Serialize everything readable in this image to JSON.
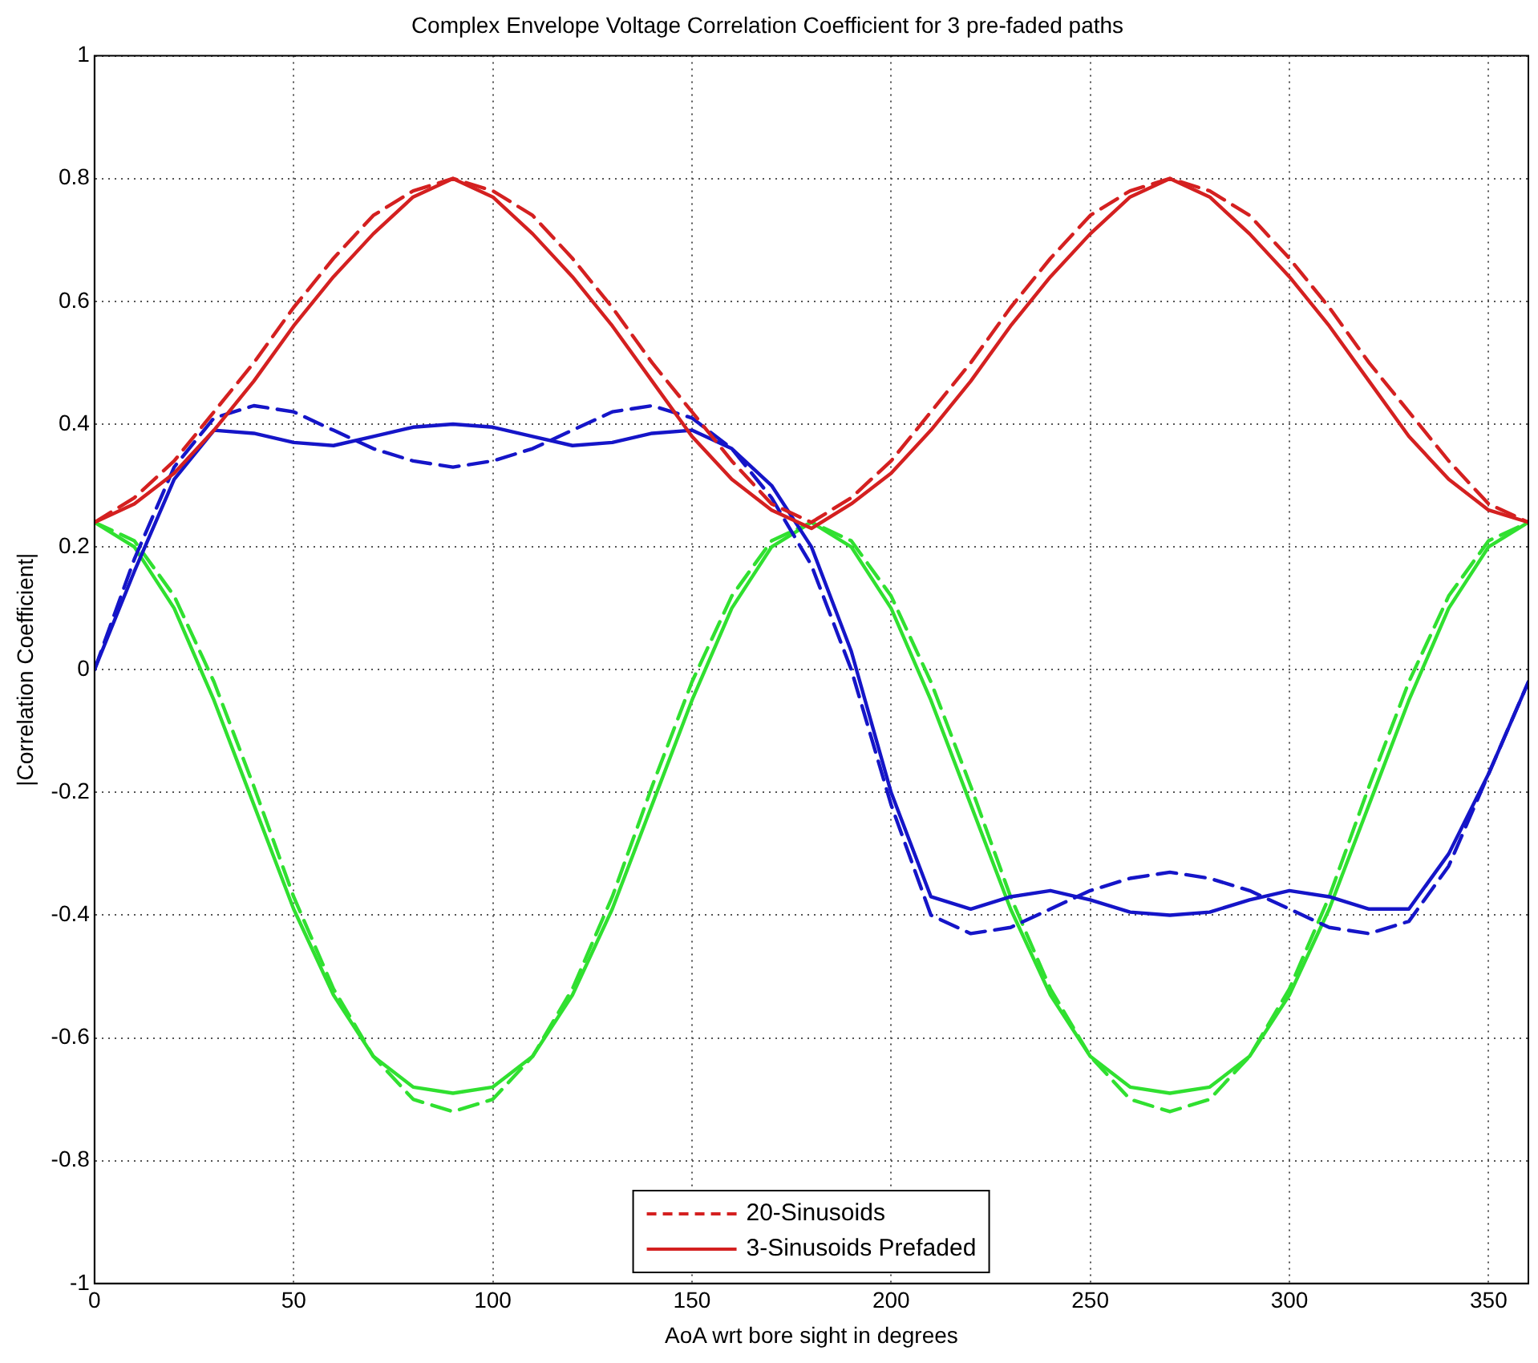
{
  "chart_data": {
    "type": "line",
    "title": "Complex Envelope Voltage Correlation Coefficient for 3 pre-faded paths",
    "xlabel": "AoA wrt bore sight in degrees",
    "ylabel": "|Correlation Coefficient|",
    "x": [
      0,
      10,
      20,
      30,
      40,
      50,
      60,
      70,
      80,
      90,
      100,
      110,
      120,
      130,
      140,
      150,
      160,
      170,
      180,
      190,
      200,
      210,
      220,
      230,
      240,
      250,
      260,
      270,
      280,
      290,
      300,
      310,
      320,
      330,
      340,
      350,
      360
    ],
    "series": [
      {
        "name": "20-Sinusoids",
        "color": "#d42020",
        "line_style": "dashed",
        "values": [
          0.24,
          0.28,
          0.34,
          0.42,
          0.5,
          0.59,
          0.67,
          0.74,
          0.78,
          0.8,
          0.78,
          0.74,
          0.67,
          0.59,
          0.5,
          0.42,
          0.34,
          0.27,
          0.24,
          0.28,
          0.34,
          0.42,
          0.5,
          0.59,
          0.67,
          0.74,
          0.78,
          0.8,
          0.78,
          0.74,
          0.67,
          0.59,
          0.5,
          0.42,
          0.34,
          0.27,
          0.24
        ]
      },
      {
        "name": "3-Sinusoids Prefaded",
        "color": "#d42020",
        "line_style": "solid",
        "values": [
          0.24,
          0.27,
          0.32,
          0.39,
          0.47,
          0.56,
          0.64,
          0.71,
          0.77,
          0.8,
          0.77,
          0.71,
          0.64,
          0.56,
          0.47,
          0.38,
          0.31,
          0.26,
          0.23,
          0.27,
          0.32,
          0.39,
          0.47,
          0.56,
          0.64,
          0.71,
          0.77,
          0.8,
          0.77,
          0.71,
          0.64,
          0.56,
          0.47,
          0.38,
          0.31,
          0.26,
          0.24
        ]
      },
      {
        "color": "#1515c8",
        "line_style": "dashed",
        "values": [
          0.0,
          0.18,
          0.33,
          0.41,
          0.43,
          0.42,
          0.39,
          0.36,
          0.34,
          0.33,
          0.34,
          0.36,
          0.39,
          0.42,
          0.43,
          0.41,
          0.36,
          0.28,
          0.17,
          0.0,
          -0.22,
          -0.4,
          -0.43,
          -0.42,
          -0.39,
          -0.36,
          -0.34,
          -0.33,
          -0.34,
          -0.36,
          -0.39,
          -0.42,
          -0.43,
          -0.41,
          -0.32,
          -0.17,
          -0.02
        ]
      },
      {
        "color": "#1515c8",
        "line_style": "solid",
        "values": [
          0.0,
          0.16,
          0.31,
          0.39,
          0.385,
          0.37,
          0.365,
          0.38,
          0.395,
          0.4,
          0.395,
          0.38,
          0.365,
          0.37,
          0.385,
          0.39,
          0.36,
          0.3,
          0.2,
          0.03,
          -0.2,
          -0.37,
          -0.39,
          -0.37,
          -0.36,
          -0.375,
          -0.395,
          -0.4,
          -0.395,
          -0.375,
          -0.36,
          -0.37,
          -0.39,
          -0.39,
          -0.3,
          -0.17,
          -0.02
        ]
      },
      {
        "color": "#30e030",
        "line_style": "dashed",
        "values": [
          0.24,
          0.21,
          0.12,
          -0.02,
          -0.19,
          -0.37,
          -0.52,
          -0.63,
          -0.7,
          -0.72,
          -0.7,
          -0.63,
          -0.52,
          -0.37,
          -0.19,
          -0.02,
          0.12,
          0.21,
          0.24,
          0.21,
          0.12,
          -0.02,
          -0.19,
          -0.37,
          -0.52,
          -0.63,
          -0.7,
          -0.72,
          -0.7,
          -0.63,
          -0.52,
          -0.37,
          -0.19,
          -0.02,
          0.12,
          0.21,
          0.24
        ]
      },
      {
        "color": "#30e030",
        "line_style": "solid",
        "values": [
          0.24,
          0.2,
          0.1,
          -0.05,
          -0.22,
          -0.39,
          -0.53,
          -0.63,
          -0.68,
          -0.69,
          -0.68,
          -0.63,
          -0.53,
          -0.39,
          -0.22,
          -0.05,
          0.1,
          0.2,
          0.24,
          0.2,
          0.1,
          -0.05,
          -0.22,
          -0.39,
          -0.53,
          -0.63,
          -0.68,
          -0.69,
          -0.68,
          -0.63,
          -0.53,
          -0.39,
          -0.22,
          -0.05,
          0.1,
          0.2,
          0.24
        ]
      }
    ],
    "xlim": [
      0,
      360
    ],
    "xticks": [
      0,
      50,
      100,
      150,
      200,
      250,
      300,
      350
    ],
    "ylim": [
      -1,
      1
    ],
    "yticks": [
      -1,
      -0.8,
      -0.6,
      -0.4,
      -0.2,
      0,
      0.2,
      0.4,
      0.6,
      0.8,
      1
    ],
    "grid": true,
    "legend": "bottom",
    "marker": "none"
  }
}
